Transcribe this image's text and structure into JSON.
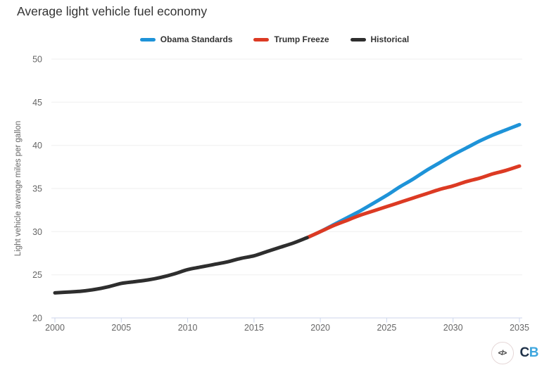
{
  "title": "Average light vehicle fuel economy",
  "legend": {
    "items": [
      {
        "label": "Obama Standards",
        "color": "#1e93d8"
      },
      {
        "label": "Trump Freeze",
        "color": "#dc3a23"
      },
      {
        "label": "Historical",
        "color": "#2e2e2e"
      }
    ]
  },
  "footer": {
    "embed_icon": "</>",
    "logo_c": "C",
    "logo_b": "B"
  },
  "colors": {
    "grid": "#efefef",
    "axis_line": "#ccd6eb",
    "tick_label": "#666666",
    "axis_title": "#666666"
  },
  "chart_data": {
    "type": "line",
    "title": "Average light vehicle fuel economy",
    "xlabel": "",
    "ylabel": "Light vehicle average miles per gallon",
    "xlim": [
      2000,
      2035
    ],
    "ylim": [
      20,
      50
    ],
    "x_ticks": [
      2000,
      2005,
      2010,
      2015,
      2020,
      2025,
      2030,
      2035
    ],
    "y_ticks": [
      20,
      25,
      30,
      35,
      40,
      45,
      50
    ],
    "grid": true,
    "legend_position": "top",
    "series": [
      {
        "name": "Obama Standards",
        "color": "#1e93d8",
        "x": [
          2019,
          2020,
          2021,
          2022,
          2023,
          2024,
          2025,
          2026,
          2027,
          2028,
          2029,
          2030,
          2031,
          2032,
          2033,
          2034,
          2035
        ],
        "values": [
          29.3,
          30.0,
          30.8,
          31.6,
          32.4,
          33.3,
          34.2,
          35.2,
          36.1,
          37.1,
          38.0,
          38.9,
          39.7,
          40.5,
          41.2,
          41.8,
          42.4
        ]
      },
      {
        "name": "Trump Freeze",
        "color": "#dc3a23",
        "x": [
          2019,
          2020,
          2021,
          2022,
          2023,
          2024,
          2025,
          2026,
          2027,
          2028,
          2029,
          2030,
          2031,
          2032,
          2033,
          2034,
          2035
        ],
        "values": [
          29.3,
          30.0,
          30.7,
          31.3,
          31.9,
          32.4,
          32.9,
          33.4,
          33.9,
          34.4,
          34.9,
          35.3,
          35.8,
          36.2,
          36.7,
          37.1,
          37.6
        ]
      },
      {
        "name": "Historical",
        "color": "#2e2e2e",
        "x": [
          2000,
          2001,
          2002,
          2003,
          2004,
          2005,
          2006,
          2007,
          2008,
          2009,
          2010,
          2011,
          2012,
          2013,
          2014,
          2015,
          2016,
          2017,
          2018,
          2019
        ],
        "values": [
          22.9,
          23.0,
          23.1,
          23.3,
          23.6,
          24.0,
          24.2,
          24.4,
          24.7,
          25.1,
          25.6,
          25.9,
          26.2,
          26.5,
          26.9,
          27.2,
          27.7,
          28.2,
          28.7,
          29.3
        ]
      }
    ]
  }
}
